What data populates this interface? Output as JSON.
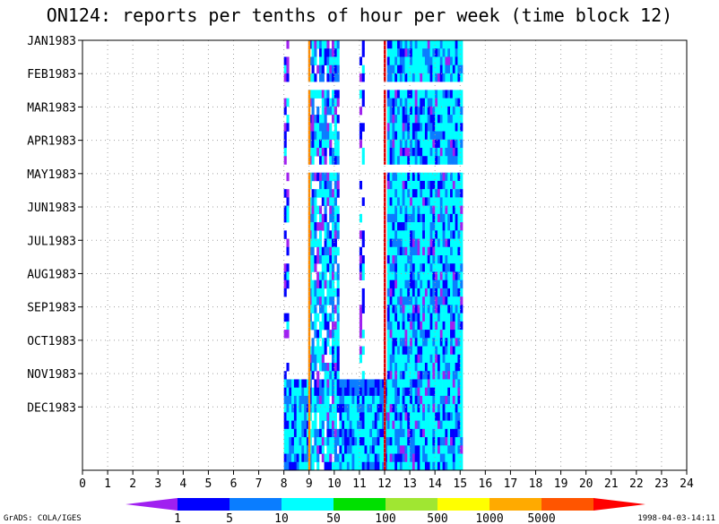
{
  "chart_data": {
    "type": "heatmap",
    "title": "ON124: reports per tenths of hour per week (time block 12)",
    "x_ticks": [
      "0",
      "1",
      "2",
      "3",
      "4",
      "5",
      "6",
      "7",
      "8",
      "9",
      "10",
      "11",
      "12",
      "13",
      "14",
      "15",
      "16",
      "17",
      "18",
      "19",
      "20",
      "21",
      "22",
      "23",
      "24"
    ],
    "xlim": [
      0,
      24
    ],
    "y_ticks": [
      "JAN1983",
      "FEB1983",
      "MAR1983",
      "APR1983",
      "MAY1983",
      "JUN1983",
      "JUL1983",
      "AUG1983",
      "SEP1983",
      "OCT1983",
      "NOV1983",
      "DEC1983"
    ],
    "y_units": "weeks",
    "ylim": [
      0,
      52
    ],
    "grid": true,
    "colorbar": {
      "levels": [
        "1",
        "5",
        "10",
        "50",
        "100",
        "500",
        "1000",
        "5000"
      ],
      "colors": [
        "#a020f0",
        "#0000ff",
        "#0a7dff",
        "#00ffff",
        "#00e000",
        "#a0e632",
        "#ffff00",
        "#ffaa00",
        "#ff5500",
        "#ff0000"
      ]
    },
    "data_range_hours": [
      8,
      15
    ],
    "vertical_lines": [
      {
        "hour": 9.0,
        "color": "#ff8c00"
      },
      {
        "hour": 12.0,
        "color": "#e00000"
      }
    ],
    "gap_weeks": [
      [
        5,
        6
      ],
      [
        15,
        16
      ]
    ],
    "cluster_note": ""
  },
  "footer": {
    "left": "GrADS: COLA/IGES",
    "right": "1998-04-03-14:11"
  }
}
